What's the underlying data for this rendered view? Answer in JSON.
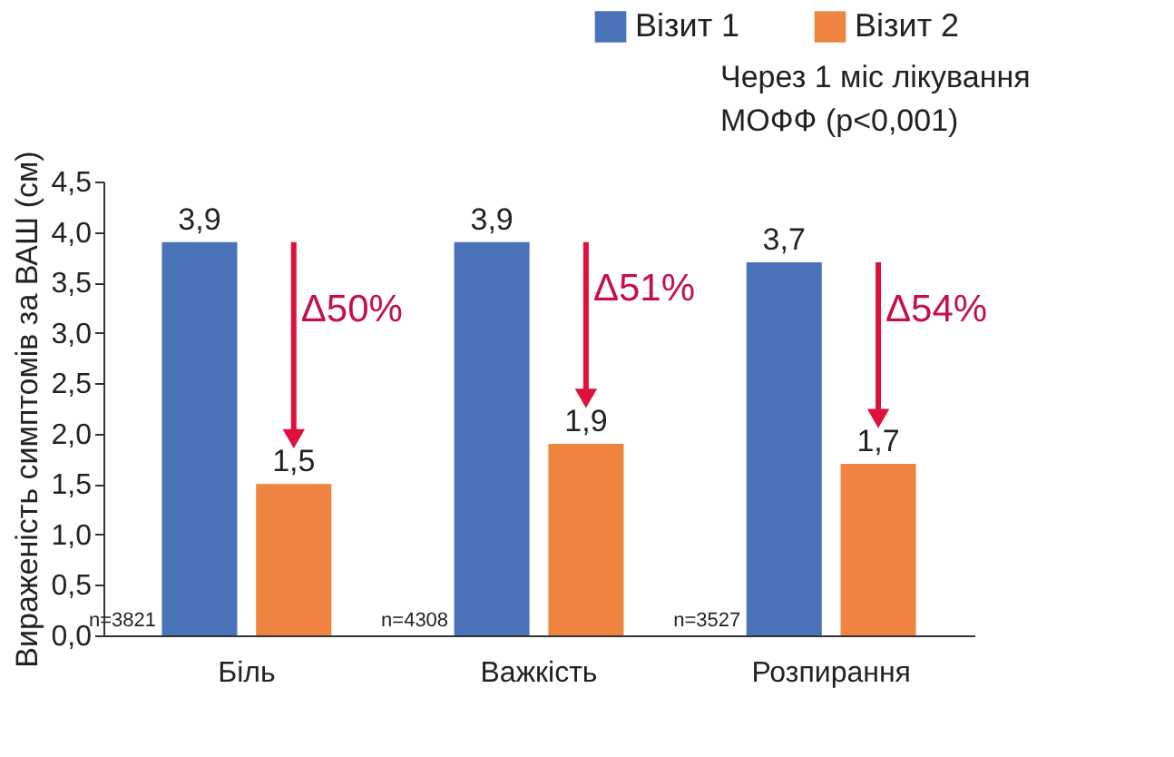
{
  "chart_data": {
    "type": "bar",
    "categories": [
      "Біль",
      "Важкість",
      "Розпирання"
    ],
    "series": [
      {
        "name": "Візит 1",
        "color": "#4a72b8",
        "values": [
          3.9,
          3.9,
          3.7
        ],
        "value_labels": [
          "3,9",
          "3,9",
          "3,7"
        ]
      },
      {
        "name": "Візит 2",
        "color": "#ee8440",
        "values": [
          1.5,
          1.9,
          1.7
        ],
        "value_labels": [
          "1,5",
          "1,9",
          "1,7"
        ]
      }
    ],
    "ylabel": "Вираженість симптомів за ВАШ (см)",
    "ylim": [
      0,
      4.5
    ],
    "yticks": [
      {
        "value": 0,
        "label": "0,0"
      },
      {
        "value": 0.5,
        "label": "0,5"
      },
      {
        "value": 1,
        "label": "1,0"
      },
      {
        "value": 1.5,
        "label": "1,5"
      },
      {
        "value": 2,
        "label": "2,0"
      },
      {
        "value": 2.5,
        "label": "2,5"
      },
      {
        "value": 3,
        "label": "3,0"
      },
      {
        "value": 3.5,
        "label": "3,5"
      },
      {
        "value": 4,
        "label": "4,0"
      },
      {
        "value": 4.5,
        "label": "4,5"
      }
    ],
    "annotations": [
      "Через 1 міс лікування\nМОФФ (p<0,001)",
      "n=3821",
      "n=4308",
      "n=3527",
      "Δ50%",
      "Δ51%",
      "Δ54%"
    ],
    "grid": false,
    "legend": "top right"
  }
}
